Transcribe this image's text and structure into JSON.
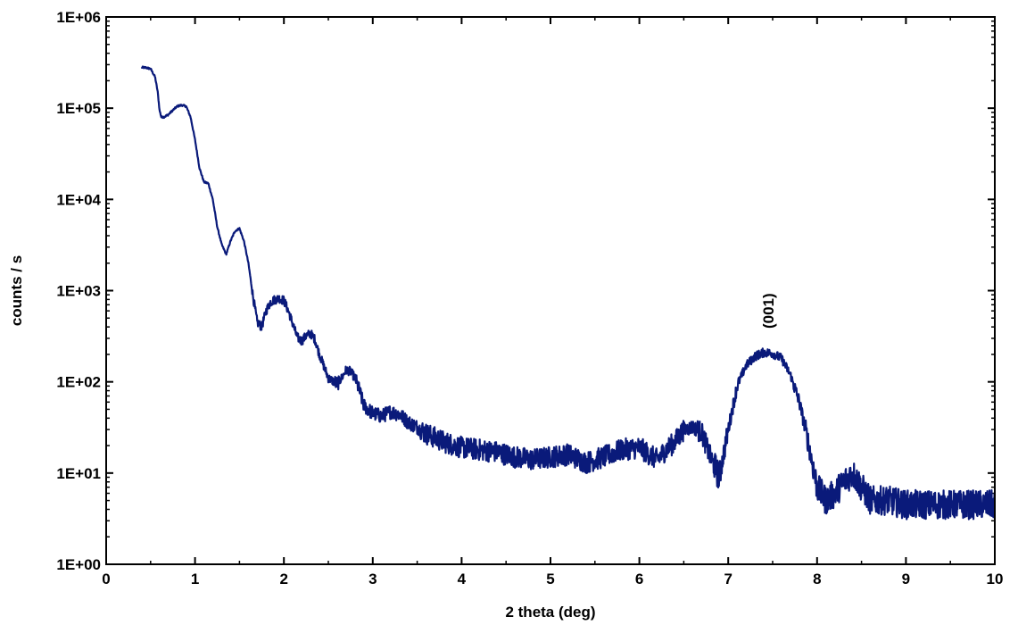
{
  "chart_data": {
    "type": "line",
    "title": "",
    "xlabel": "2 theta (deg)",
    "ylabel": "counts / s",
    "xlim": [
      0,
      10
    ],
    "ylim": [
      1,
      1000000
    ],
    "yscale": "log",
    "grid": false,
    "x_ticks": [
      0,
      1,
      2,
      3,
      4,
      5,
      6,
      7,
      8,
      9,
      10
    ],
    "x_tick_labels": [
      "0",
      "1",
      "2",
      "3",
      "4",
      "5",
      "6",
      "7",
      "8",
      "9",
      "10"
    ],
    "y_ticks": [
      1,
      10,
      100,
      1000,
      10000,
      100000,
      1000000
    ],
    "y_tick_labels": [
      "1E+00",
      "1E+01",
      "1E+02",
      "1E+03",
      "1E+04",
      "1E+05",
      "1E+06"
    ],
    "line_color": "#0a1a7a",
    "annotations": [
      {
        "text": "(001)",
        "x": 7.45,
        "y": 600,
        "rotation": -90
      }
    ],
    "series": [
      {
        "x": [
          0.4,
          0.45,
          0.5,
          0.55,
          0.58,
          0.6,
          0.62,
          0.65,
          0.7,
          0.75,
          0.8,
          0.85,
          0.9,
          0.95,
          1.0,
          1.05,
          1.1,
          1.15,
          1.2,
          1.25,
          1.3,
          1.35,
          1.4,
          1.45,
          1.5,
          1.55,
          1.6,
          1.65,
          1.7,
          1.75,
          1.8,
          1.85,
          1.9,
          1.95,
          2.0,
          2.05,
          2.1,
          2.15,
          2.2,
          2.25,
          2.3,
          2.35,
          2.4,
          2.5,
          2.6,
          2.65,
          2.7,
          2.75,
          2.8,
          2.85,
          2.9,
          3.0,
          3.1,
          3.2,
          3.3,
          3.4,
          3.5,
          3.6,
          3.8,
          4.0,
          4.2,
          4.4,
          4.6,
          4.8,
          5.0,
          5.2,
          5.4,
          5.6,
          5.8,
          6.0,
          6.2,
          6.3,
          6.4,
          6.5,
          6.6,
          6.7,
          6.8,
          6.9,
          7.0,
          7.1,
          7.2,
          7.3,
          7.4,
          7.5,
          7.6,
          7.7,
          7.8,
          7.9,
          8.0,
          8.1,
          8.2,
          8.3,
          8.4,
          8.5,
          8.6,
          8.8,
          9.0,
          9.2,
          9.4,
          9.6,
          9.8,
          10.0
        ],
        "y": [
          280000,
          278000,
          270000,
          220000,
          150000,
          95000,
          80000,
          80000,
          85000,
          95000,
          105000,
          108000,
          105000,
          80000,
          45000,
          22000,
          15500,
          15000,
          10000,
          5000,
          3200,
          2500,
          3500,
          4500,
          4800,
          3500,
          2000,
          900,
          450,
          400,
          600,
          750,
          800,
          820,
          780,
          600,
          430,
          310,
          280,
          320,
          340,
          290,
          200,
          110,
          95,
          110,
          135,
          130,
          110,
          80,
          55,
          45,
          42,
          47,
          44,
          36,
          32,
          27,
          22,
          19,
          18,
          17,
          15,
          14,
          15,
          16,
          13,
          15,
          18,
          19,
          14,
          18,
          22,
          30,
          32,
          28,
          15,
          9,
          30,
          90,
          150,
          190,
          210,
          205,
          180,
          120,
          60,
          22,
          7,
          5,
          6,
          8,
          10,
          7,
          5,
          5,
          4.5,
          4.5,
          4.5,
          4.5,
          4.5,
          4.5
        ]
      }
    ]
  }
}
